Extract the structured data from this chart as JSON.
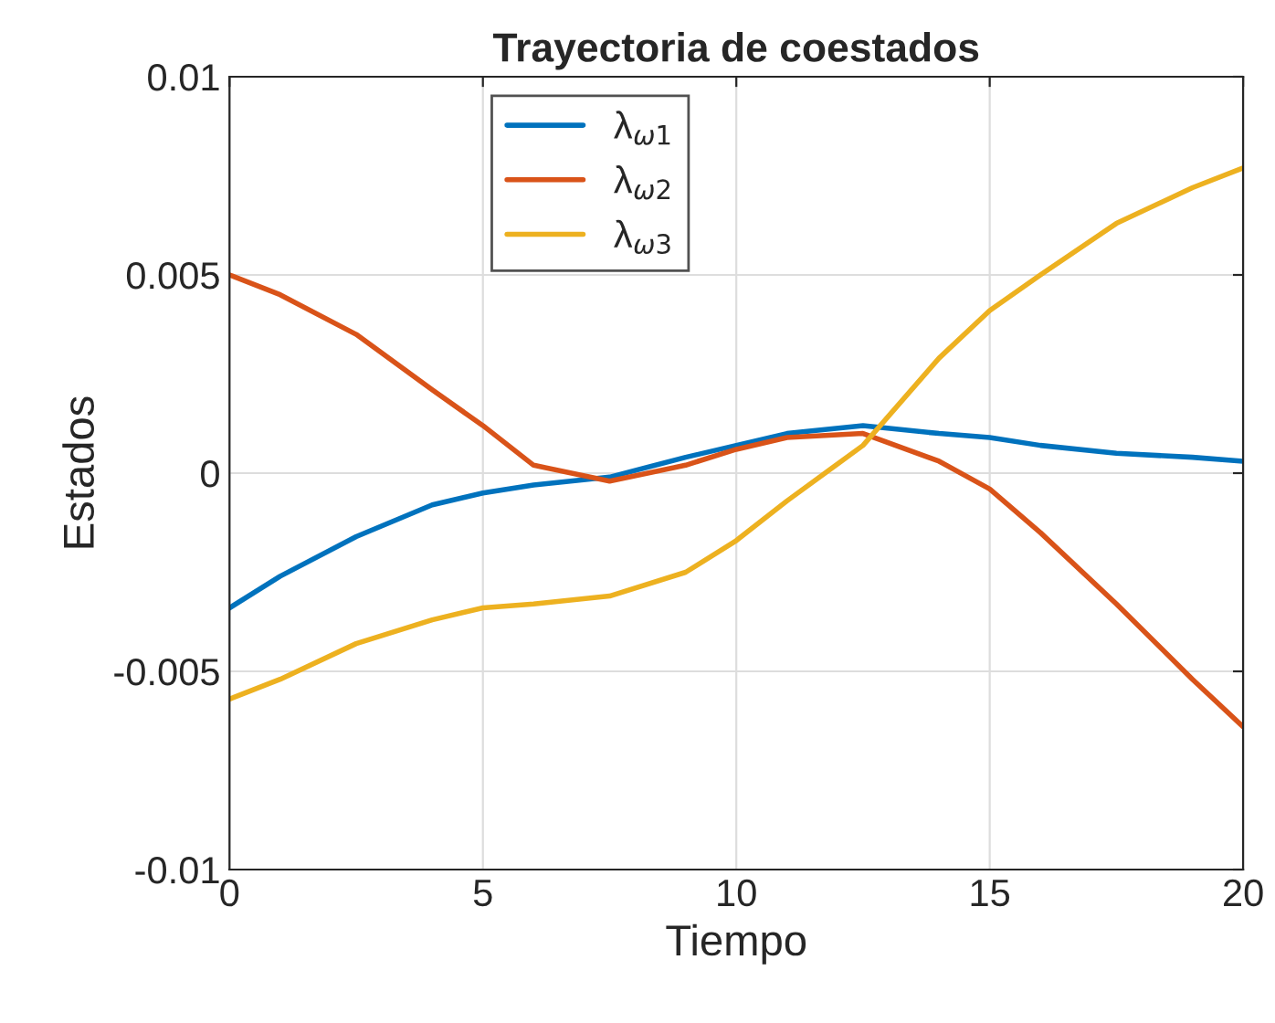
{
  "chart_data": {
    "type": "line",
    "title": "Trayectoria de coestados",
    "xlabel": "Tiempo",
    "ylabel": "Estados",
    "x": [
      0,
      1,
      2.5,
      4,
      5,
      6,
      7.5,
      9,
      10,
      11,
      12.5,
      14,
      15,
      16,
      17.5,
      19,
      20
    ],
    "series": [
      {
        "name": "λ$_{ω1}$",
        "color": "#0072bd",
        "values": [
          -0.0034,
          -0.0026,
          -0.0016,
          -0.0008,
          -0.0005,
          -0.0003,
          -0.0001,
          0.0004,
          0.0007,
          0.001,
          0.0012,
          0.001,
          0.0009,
          0.0007,
          0.0005,
          0.0004,
          0.0003
        ]
      },
      {
        "name": "λ$_{ω2}$",
        "color": "#d95319",
        "values": [
          0.005,
          0.0045,
          0.0035,
          0.0021,
          0.0012,
          0.0002,
          -0.0002,
          0.0002,
          0.0006,
          0.0009,
          0.001,
          0.0003,
          -0.0004,
          -0.0015,
          -0.0033,
          -0.0052,
          -0.0064
        ]
      },
      {
        "name": "λ$_{ω3}$",
        "color": "#edb120",
        "values": [
          -0.0057,
          -0.0052,
          -0.0043,
          -0.0037,
          -0.0034,
          -0.0033,
          -0.0031,
          -0.0025,
          -0.0017,
          -0.0007,
          0.0007,
          0.0029,
          0.0041,
          0.005,
          0.0063,
          0.0072,
          0.0077
        ]
      }
    ],
    "xlim": [
      0,
      20
    ],
    "ylim": [
      -0.01,
      0.01
    ],
    "xticks": [
      0,
      5,
      10,
      15,
      20
    ],
    "yticks": [
      -0.01,
      -0.005,
      0,
      0.005,
      0.01
    ],
    "grid": true,
    "legend": "top left",
    "line_style": "solid",
    "marker": "none"
  }
}
